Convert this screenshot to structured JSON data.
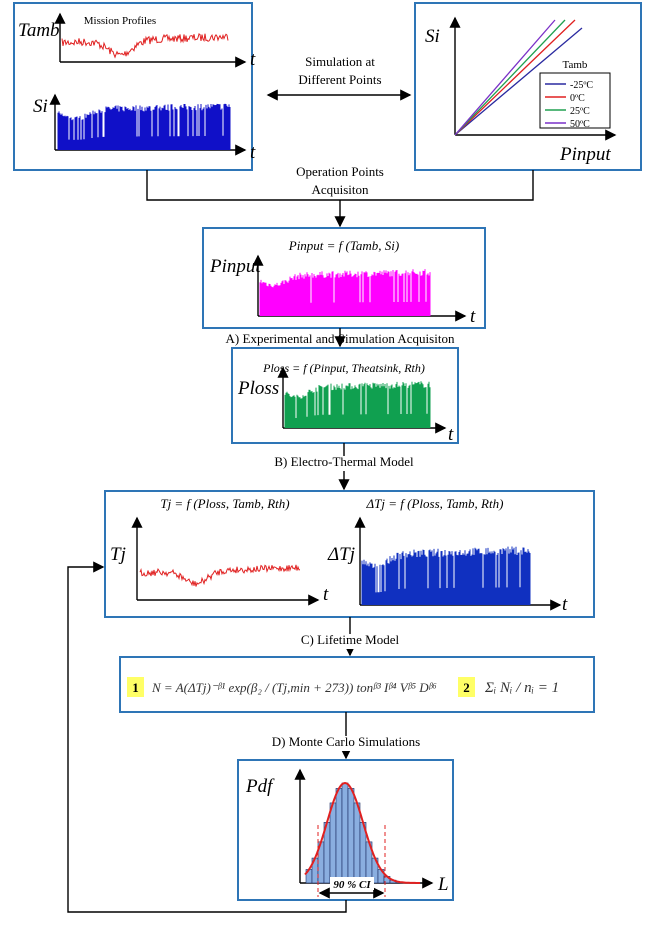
{
  "mission_profiles": {
    "title": "Mission Profiles",
    "y_label_top": "Tamb",
    "x_label_top": "t",
    "y_label_bottom": "Si",
    "x_label_bottom": "t"
  },
  "simulation": {
    "line_1": "Simulation at",
    "line_2": "Different Points"
  },
  "characteristic": {
    "y_label": "Si",
    "x_label": "Pinput",
    "legend_title": "Tamb",
    "legend": [
      {
        "label": "-25ºC",
        "color": "#2a2aa0"
      },
      {
        "label": "0ºC",
        "color": "#e02020"
      },
      {
        "label": "25ºC",
        "color": "#20a050"
      },
      {
        "label": "50ºC",
        "color": "#7a30c8"
      }
    ]
  },
  "operation_points": {
    "line_1": "Operation Points",
    "line_2": "Acquisiton"
  },
  "input_power": {
    "formula": "Pinput = f (Tamb, Si)",
    "y_label": "Pinput",
    "x_label": "t"
  },
  "step_a": {
    "label": "A) Experimental and Simulation Acquisiton"
  },
  "power_loss": {
    "formula": "Ploss = f (Pinput, Theatsink, Rth)",
    "y_label": "Ploss",
    "x_label": "t"
  },
  "step_b": {
    "label": "B) Electro-Thermal Model"
  },
  "thermal": {
    "tj_formula": "Tj = f (Ploss, Tamb, Rth)",
    "tj_label": "Tj",
    "tj_x_label": "t",
    "dtj_formula": "ΔTj = f (Ploss, Tamb, Rth)",
    "dtj_label": "ΔTj",
    "dtj_x_label": "t"
  },
  "step_c": {
    "label": "C) Lifetime Model"
  },
  "lifetime": {
    "badge_1": "1",
    "equation_1": "N = A(ΔTj)⁻ᵝ¹ exp(β₂ / (Tj,min + 273)) tonᵝ³ Iᵝ⁴ Vᵝ⁵ Dᵝ⁶",
    "badge_2": "2",
    "equation_2": "Σᵢ Nᵢ / nᵢ = 1"
  },
  "step_d": {
    "label": "D) Monte Carlo Simulations"
  },
  "monte_carlo": {
    "y_label": "Pdf",
    "x_label": "L",
    "interval": "90 % CI"
  }
}
